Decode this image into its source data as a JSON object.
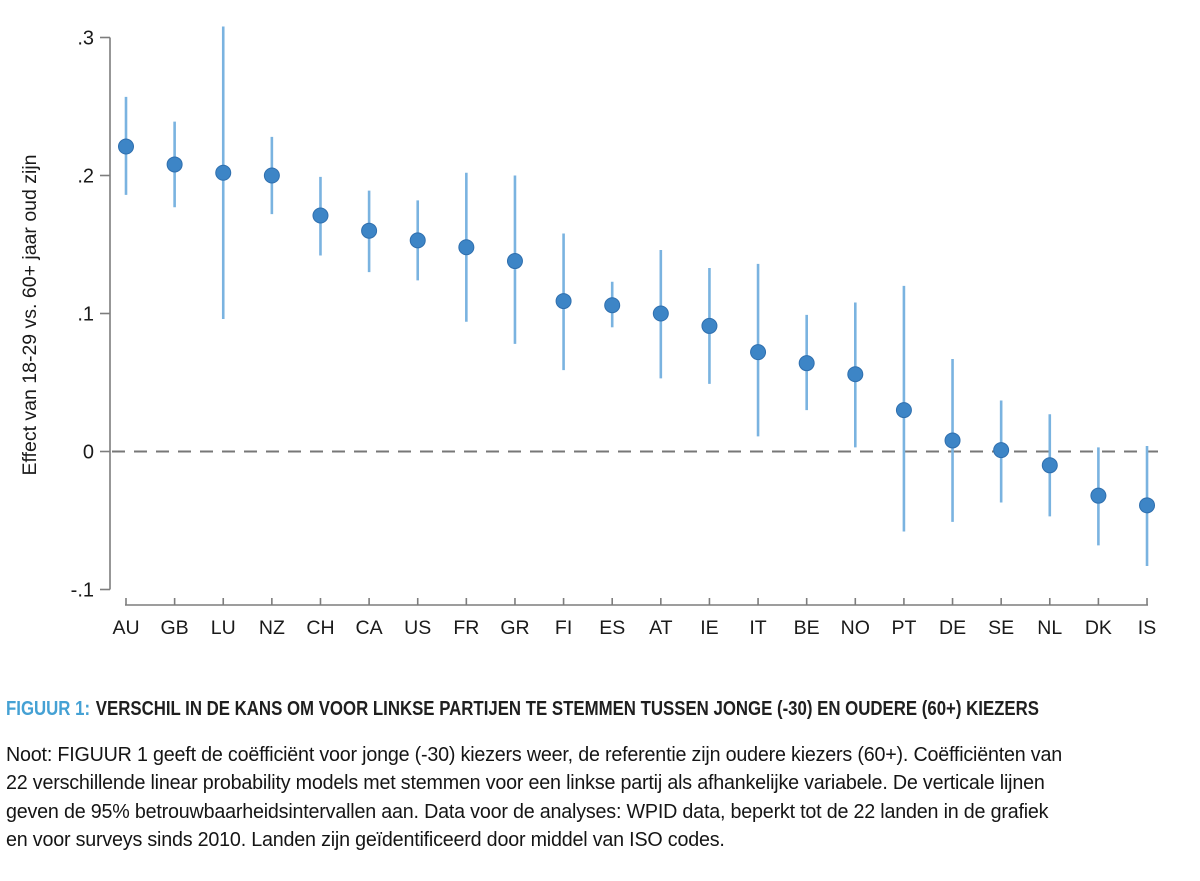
{
  "caption": {
    "label": "FIGUUR 1:",
    "title": "VERSCHIL IN DE KANS OM VOOR LINKSE PARTIJEN TE STEMMEN TUSSEN JONGE (-30) EN OUDERE (60+) KIEZERS",
    "label_color": "#45a1d4"
  },
  "note": {
    "lines": [
      "Noot: FIGUUR 1 geeft de coëfficiënt voor jonge (-30) kiezers weer, de referentie zijn oudere kiezers (60+). Coëfficiënten van",
      "22 verschillende linear probability models met stemmen voor een linkse partij als afhankelijke variabele. De verticale lijnen",
      "geven de 95% betrouwbaarheidsintervallen aan. Data voor de analyses: WPID data, beperkt tot de 22 landen in de grafiek",
      "en voor surveys sinds 2010. Landen zijn geïdentificeerd door middel van ISO codes."
    ]
  },
  "chart_data": {
    "type": "scatter",
    "subtype": "coefficient-plot-with-95ci",
    "title": "FIGUUR 1: VERSCHIL IN DE KANS OM VOOR LINKSE PARTIJEN TE STEMMEN TUSSEN JONGE (-30) EN OUDERE (60+) KIEZERS",
    "xlabel": "",
    "ylabel": "Effect van 18-29 vs. 60+ jaar oud zijn",
    "ylim": [
      -0.1,
      0.31
    ],
    "grid": false,
    "ci_level": "95%",
    "y_ticks": [
      {
        "label": ".3",
        "value": 0.3
      },
      {
        "label": ".2",
        "value": 0.2
      },
      {
        "label": ".1",
        "value": 0.1
      },
      {
        "label": "0",
        "value": 0.0
      },
      {
        "label": "-.1",
        "value": -0.1
      }
    ],
    "zero_line": {
      "value": 0,
      "style": "dashed",
      "color": "#777777"
    },
    "categories": [
      "AU",
      "GB",
      "LU",
      "NZ",
      "CH",
      "CA",
      "US",
      "FR",
      "GR",
      "FI",
      "ES",
      "AT",
      "IE",
      "IT",
      "BE",
      "NO",
      "PT",
      "DE",
      "SE",
      "NL",
      "DK",
      "IS"
    ],
    "points": [
      {
        "country": "AU",
        "value": 0.221,
        "ci_low": 0.186,
        "ci_high": 0.257
      },
      {
        "country": "GB",
        "value": 0.208,
        "ci_low": 0.177,
        "ci_high": 0.239
      },
      {
        "country": "LU",
        "value": 0.202,
        "ci_low": 0.096,
        "ci_high": 0.308
      },
      {
        "country": "NZ",
        "value": 0.2,
        "ci_low": 0.172,
        "ci_high": 0.228
      },
      {
        "country": "CH",
        "value": 0.171,
        "ci_low": 0.142,
        "ci_high": 0.199
      },
      {
        "country": "CA",
        "value": 0.16,
        "ci_low": 0.13,
        "ci_high": 0.189
      },
      {
        "country": "US",
        "value": 0.153,
        "ci_low": 0.124,
        "ci_high": 0.182
      },
      {
        "country": "FR",
        "value": 0.148,
        "ci_low": 0.094,
        "ci_high": 0.202
      },
      {
        "country": "GR",
        "value": 0.138,
        "ci_low": 0.078,
        "ci_high": 0.2
      },
      {
        "country": "FI",
        "value": 0.109,
        "ci_low": 0.059,
        "ci_high": 0.158
      },
      {
        "country": "ES",
        "value": 0.106,
        "ci_low": 0.09,
        "ci_high": 0.123
      },
      {
        "country": "AT",
        "value": 0.1,
        "ci_low": 0.053,
        "ci_high": 0.146
      },
      {
        "country": "IE",
        "value": 0.091,
        "ci_low": 0.049,
        "ci_high": 0.133
      },
      {
        "country": "IT",
        "value": 0.072,
        "ci_low": 0.011,
        "ci_high": 0.136
      },
      {
        "country": "BE",
        "value": 0.064,
        "ci_low": 0.03,
        "ci_high": 0.099
      },
      {
        "country": "NO",
        "value": 0.056,
        "ci_low": 0.003,
        "ci_high": 0.108
      },
      {
        "country": "PT",
        "value": 0.03,
        "ci_low": -0.058,
        "ci_high": 0.12
      },
      {
        "country": "DE",
        "value": 0.008,
        "ci_low": -0.051,
        "ci_high": 0.067
      },
      {
        "country": "SE",
        "value": 0.001,
        "ci_low": -0.037,
        "ci_high": 0.037
      },
      {
        "country": "NL",
        "value": -0.01,
        "ci_low": -0.047,
        "ci_high": 0.027
      },
      {
        "country": "DK",
        "value": -0.032,
        "ci_low": -0.068,
        "ci_high": 0.003
      },
      {
        "country": "IS",
        "value": -0.039,
        "ci_low": -0.083,
        "ci_high": 0.004
      }
    ],
    "colors": {
      "dot": "#3d85c6",
      "dot_edge": "#2f6fae",
      "ci_line": "#7ab3e0",
      "axis": "#7d7d7d",
      "tick_text": "#1a1a1a",
      "zero_line": "#777777"
    }
  }
}
